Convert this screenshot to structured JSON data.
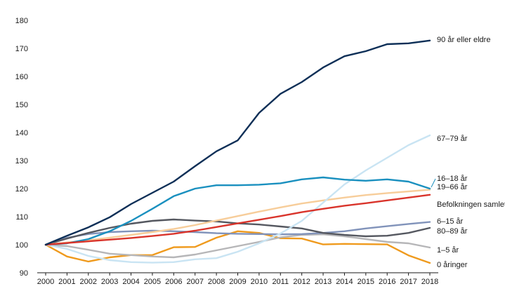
{
  "chart_data": {
    "type": "line",
    "title": "",
    "xlabel": "",
    "ylabel": "",
    "x": [
      2000,
      2001,
      2002,
      2003,
      2004,
      2005,
      2006,
      2007,
      2008,
      2009,
      2010,
      2011,
      2012,
      2013,
      2014,
      2015,
      2016,
      2017,
      2018
    ],
    "ylim": [
      90,
      180
    ],
    "yticks": [
      90,
      100,
      110,
      120,
      130,
      140,
      150,
      160,
      170,
      180
    ],
    "grid": false,
    "legend": "inline labels at right end of lines",
    "series": [
      {
        "name": "90 år eller eldre",
        "color": "#0d2f57",
        "values": [
          100,
          103.2,
          106.2,
          109.8,
          114.5,
          118.5,
          122.5,
          128,
          133.3,
          137.2,
          147,
          153.8,
          158,
          163.2,
          167.2,
          169,
          171.5,
          171.8,
          172.8
        ]
      },
      {
        "name": "67–79 år",
        "color": "#c9e4f3",
        "values": [
          100,
          98.5,
          96,
          94.5,
          93.8,
          93.6,
          93.8,
          94.8,
          95.2,
          97.5,
          100.5,
          104,
          108.5,
          115,
          121.5,
          126.5,
          131,
          135.5,
          139
        ]
      },
      {
        "name": "16–18 år",
        "color": "#1a90bf",
        "values": [
          100,
          100.5,
          102,
          104.8,
          108.5,
          112.8,
          117.3,
          120,
          121.2,
          121.2,
          121.4,
          121.9,
          123.3,
          124,
          123.2,
          122.8,
          123.3,
          122.5,
          120
        ]
      },
      {
        "name": "19–66 år",
        "color": "#f7cd9a",
        "values": [
          100,
          100.8,
          101.6,
          102.5,
          103.5,
          104.5,
          105.6,
          107,
          108.6,
          110.2,
          111.8,
          113.3,
          114.7,
          115.8,
          116.8,
          117.7,
          118.4,
          119,
          119.6
        ]
      },
      {
        "name": "Befolkningen samlet",
        "color": "#d9342b",
        "values": [
          100,
          100.6,
          101.2,
          101.8,
          102.4,
          103.1,
          103.9,
          105,
          106.3,
          107.6,
          108.9,
          110.2,
          111.6,
          112.8,
          113.9,
          114.8,
          115.8,
          116.8,
          117.8
        ]
      },
      {
        "name": "6–15 år",
        "color": "#8193ba",
        "values": [
          100,
          102.5,
          103.8,
          104.5,
          104.8,
          105,
          104.8,
          104.5,
          104.1,
          103.9,
          103.8,
          103.7,
          103.8,
          104.2,
          104.8,
          105.8,
          106.6,
          107.4,
          108.1
        ]
      },
      {
        "name": "80–89 år",
        "color": "#555860",
        "values": [
          100,
          102.2,
          104.2,
          106,
          107.5,
          108.5,
          109,
          108.6,
          108.3,
          107.6,
          107.2,
          106.5,
          105.8,
          104.2,
          103.5,
          103,
          103.2,
          104.2,
          106
        ]
      },
      {
        "name": "1–5 år",
        "color": "#b6b6b8",
        "values": [
          100,
          99.5,
          98.2,
          96.8,
          96.3,
          95.8,
          95.5,
          96.5,
          98,
          99.5,
          101,
          102.6,
          103.5,
          103.7,
          103,
          102,
          101,
          100.5,
          99
        ]
      },
      {
        "name": "0 åringer",
        "color": "#ef9a1d",
        "values": [
          100,
          95.8,
          94,
          95.5,
          96.3,
          96.3,
          99.1,
          99.2,
          102.5,
          104.8,
          104.2,
          102.3,
          102.2,
          100.1,
          100.3,
          100.2,
          100.1,
          96.2,
          93.5
        ]
      }
    ]
  }
}
